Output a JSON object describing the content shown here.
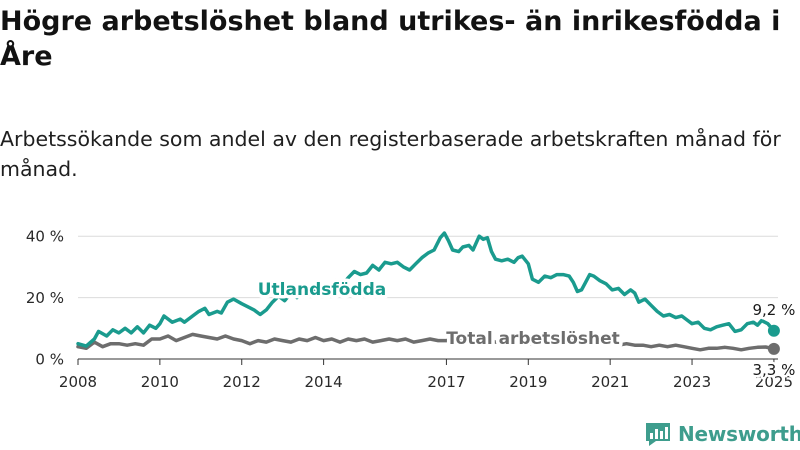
{
  "header": {
    "title": "Högre arbetslöshet bland utrikes- än inrikesfödda i Åre",
    "subtitle": "Arbetssökande som andel av den registerbaserade arbetskraften månad för månad."
  },
  "brand": {
    "name": "Newsworthy",
    "icon": "newsworthy-logo-icon",
    "color": "#3e9d8d"
  },
  "chart_data": {
    "type": "line",
    "title": "Högre arbetslöshet bland utrikes- än inrikesfödda i Åre",
    "subtitle": "Arbetssökande som andel av den registerbaserade arbetskraften månad för månad.",
    "xlabel": "",
    "ylabel": "",
    "xlim": [
      2008.0,
      2025.1
    ],
    "ylim": [
      0,
      43
    ],
    "x_ticks": [
      2008,
      2010,
      2012,
      2014,
      2017,
      2019,
      2021,
      2023,
      2025
    ],
    "x_tick_labels": [
      "2008",
      "2010",
      "2012",
      "2014",
      "2017",
      "2019",
      "2021",
      "2023",
      "2025"
    ],
    "y_ticks": [
      0,
      20,
      40
    ],
    "y_tick_labels": [
      "0 %",
      "20 %",
      "40 %"
    ],
    "grid": "horizontal",
    "legend": "inline labels",
    "series": [
      {
        "name": "Utlandsfödda",
        "color": "#1a9b8e",
        "end_label": "9,2 %",
        "points": [
          [
            2008.0,
            5.0
          ],
          [
            2008.2,
            4.2
          ],
          [
            2008.4,
            6.5
          ],
          [
            2008.5,
            9.0
          ],
          [
            2008.7,
            7.5
          ],
          [
            2008.85,
            9.5
          ],
          [
            2009.0,
            8.5
          ],
          [
            2009.15,
            10.0
          ],
          [
            2009.3,
            8.5
          ],
          [
            2009.45,
            10.5
          ],
          [
            2009.6,
            8.5
          ],
          [
            2009.75,
            11.0
          ],
          [
            2009.9,
            10.0
          ],
          [
            2010.0,
            11.5
          ],
          [
            2010.1,
            14.0
          ],
          [
            2010.3,
            12.0
          ],
          [
            2010.5,
            13.0
          ],
          [
            2010.6,
            12.0
          ],
          [
            2010.8,
            14.0
          ],
          [
            2010.95,
            15.5
          ],
          [
            2011.1,
            16.5
          ],
          [
            2011.2,
            14.5
          ],
          [
            2011.4,
            15.5
          ],
          [
            2011.5,
            15.0
          ],
          [
            2011.65,
            18.5
          ],
          [
            2011.8,
            19.5
          ],
          [
            2012.0,
            18.0
          ],
          [
            2012.15,
            17.0
          ],
          [
            2012.3,
            16.0
          ],
          [
            2012.45,
            14.5
          ],
          [
            2012.6,
            16.0
          ],
          [
            2012.75,
            18.5
          ],
          [
            2012.9,
            20.5
          ],
          [
            2013.05,
            19.0
          ],
          [
            2013.2,
            21.5
          ],
          [
            2013.35,
            20.0
          ],
          [
            2013.5,
            22.0
          ],
          [
            2013.65,
            21.0
          ],
          [
            2013.8,
            23.0
          ],
          [
            2014.0,
            24.0
          ],
          [
            2014.15,
            23.5
          ],
          [
            2014.3,
            25.5
          ],
          [
            2014.45,
            24.0
          ],
          [
            2014.6,
            26.5
          ],
          [
            2014.75,
            28.5
          ],
          [
            2014.9,
            27.5
          ],
          [
            2015.05,
            28.0
          ],
          [
            2015.2,
            30.5
          ],
          [
            2015.35,
            29.0
          ],
          [
            2015.5,
            31.5
          ],
          [
            2015.65,
            31.0
          ],
          [
            2015.8,
            31.5
          ],
          [
            2015.95,
            30.0
          ],
          [
            2016.1,
            29.0
          ],
          [
            2016.25,
            31.0
          ],
          [
            2016.4,
            33.0
          ],
          [
            2016.55,
            34.5
          ],
          [
            2016.7,
            35.5
          ],
          [
            2016.85,
            39.5
          ],
          [
            2016.95,
            41.0
          ],
          [
            2017.05,
            38.5
          ],
          [
            2017.15,
            35.5
          ],
          [
            2017.3,
            35.0
          ],
          [
            2017.4,
            36.5
          ],
          [
            2017.55,
            37.0
          ],
          [
            2017.65,
            35.5
          ],
          [
            2017.8,
            40.0
          ],
          [
            2017.9,
            39.0
          ],
          [
            2018.0,
            39.5
          ],
          [
            2018.1,
            35.0
          ],
          [
            2018.2,
            32.5
          ],
          [
            2018.35,
            32.0
          ],
          [
            2018.5,
            32.5
          ],
          [
            2018.65,
            31.5
          ],
          [
            2018.75,
            33.0
          ],
          [
            2018.85,
            33.5
          ],
          [
            2019.0,
            31.0
          ],
          [
            2019.1,
            26.0
          ],
          [
            2019.25,
            25.0
          ],
          [
            2019.4,
            27.0
          ],
          [
            2019.55,
            26.5
          ],
          [
            2019.7,
            27.5
          ],
          [
            2019.85,
            27.5
          ],
          [
            2020.0,
            27.0
          ],
          [
            2020.1,
            25.0
          ],
          [
            2020.2,
            22.0
          ],
          [
            2020.3,
            22.5
          ],
          [
            2020.4,
            25.0
          ],
          [
            2020.5,
            27.5
          ],
          [
            2020.6,
            27.0
          ],
          [
            2020.75,
            25.5
          ],
          [
            2020.9,
            24.5
          ],
          [
            2021.05,
            22.5
          ],
          [
            2021.2,
            23.0
          ],
          [
            2021.35,
            21.0
          ],
          [
            2021.5,
            22.5
          ],
          [
            2021.6,
            21.5
          ],
          [
            2021.7,
            18.5
          ],
          [
            2021.85,
            19.5
          ],
          [
            2022.0,
            17.5
          ],
          [
            2022.15,
            15.5
          ],
          [
            2022.3,
            14.0
          ],
          [
            2022.45,
            14.5
          ],
          [
            2022.6,
            13.5
          ],
          [
            2022.75,
            14.0
          ],
          [
            2022.9,
            12.5
          ],
          [
            2023.0,
            11.5
          ],
          [
            2023.15,
            12.0
          ],
          [
            2023.3,
            10.0
          ],
          [
            2023.45,
            9.5
          ],
          [
            2023.6,
            10.5
          ],
          [
            2023.75,
            11.0
          ],
          [
            2023.9,
            11.5
          ],
          [
            2024.05,
            9.0
          ],
          [
            2024.2,
            9.5
          ],
          [
            2024.35,
            11.5
          ],
          [
            2024.5,
            12.0
          ],
          [
            2024.6,
            11.0
          ],
          [
            2024.7,
            12.5
          ],
          [
            2024.85,
            11.5
          ],
          [
            2025.0,
            9.2
          ]
        ]
      },
      {
        "name": "Total arbetslöshet",
        "color": "#6d6d6d",
        "end_label": "3,3 %",
        "points": [
          [
            2008.0,
            4.0
          ],
          [
            2008.2,
            3.5
          ],
          [
            2008.4,
            5.5
          ],
          [
            2008.6,
            4.0
          ],
          [
            2008.8,
            5.0
          ],
          [
            2009.0,
            5.0
          ],
          [
            2009.2,
            4.5
          ],
          [
            2009.4,
            5.0
          ],
          [
            2009.6,
            4.5
          ],
          [
            2009.8,
            6.5
          ],
          [
            2010.0,
            6.5
          ],
          [
            2010.2,
            7.5
          ],
          [
            2010.4,
            6.0
          ],
          [
            2010.6,
            7.0
          ],
          [
            2010.8,
            8.0
          ],
          [
            2011.0,
            7.5
          ],
          [
            2011.2,
            7.0
          ],
          [
            2011.4,
            6.5
          ],
          [
            2011.6,
            7.5
          ],
          [
            2011.8,
            6.5
          ],
          [
            2012.0,
            6.0
          ],
          [
            2012.2,
            5.0
          ],
          [
            2012.4,
            6.0
          ],
          [
            2012.6,
            5.5
          ],
          [
            2012.8,
            6.5
          ],
          [
            2013.0,
            6.0
          ],
          [
            2013.2,
            5.5
          ],
          [
            2013.4,
            6.5
          ],
          [
            2013.6,
            6.0
          ],
          [
            2013.8,
            7.0
          ],
          [
            2014.0,
            6.0
          ],
          [
            2014.2,
            6.5
          ],
          [
            2014.4,
            5.5
          ],
          [
            2014.6,
            6.5
          ],
          [
            2014.8,
            6.0
          ],
          [
            2015.0,
            6.5
          ],
          [
            2015.2,
            5.5
          ],
          [
            2015.4,
            6.0
          ],
          [
            2015.6,
            6.5
          ],
          [
            2015.8,
            6.0
          ],
          [
            2016.0,
            6.5
          ],
          [
            2016.2,
            5.5
          ],
          [
            2016.4,
            6.0
          ],
          [
            2016.6,
            6.5
          ],
          [
            2016.8,
            6.0
          ],
          [
            2017.0,
            6.0
          ],
          [
            2017.2,
            6.5
          ],
          [
            2017.4,
            5.5
          ],
          [
            2017.6,
            6.0
          ],
          [
            2017.8,
            6.0
          ],
          [
            2018.0,
            6.5
          ],
          [
            2018.2,
            5.5
          ],
          [
            2018.4,
            5.5
          ],
          [
            2018.6,
            5.0
          ],
          [
            2018.8,
            5.5
          ],
          [
            2019.0,
            5.0
          ],
          [
            2019.2,
            4.5
          ],
          [
            2019.4,
            5.0
          ],
          [
            2019.6,
            5.5
          ],
          [
            2019.8,
            5.0
          ],
          [
            2020.0,
            5.5
          ],
          [
            2020.2,
            6.0
          ],
          [
            2020.4,
            5.5
          ],
          [
            2020.6,
            5.0
          ],
          [
            2020.8,
            5.5
          ],
          [
            2021.0,
            5.0
          ],
          [
            2021.2,
            4.5
          ],
          [
            2021.4,
            5.0
          ],
          [
            2021.6,
            4.5
          ],
          [
            2021.8,
            4.5
          ],
          [
            2022.0,
            4.0
          ],
          [
            2022.2,
            4.5
          ],
          [
            2022.4,
            4.0
          ],
          [
            2022.6,
            4.5
          ],
          [
            2022.8,
            4.0
          ],
          [
            2023.0,
            3.5
          ],
          [
            2023.2,
            3.0
          ],
          [
            2023.4,
            3.5
          ],
          [
            2023.6,
            3.5
          ],
          [
            2023.8,
            3.8
          ],
          [
            2024.0,
            3.5
          ],
          [
            2024.2,
            3.0
          ],
          [
            2024.4,
            3.5
          ],
          [
            2024.6,
            3.8
          ],
          [
            2024.8,
            3.9
          ],
          [
            2025.0,
            3.3
          ]
        ]
      }
    ]
  }
}
